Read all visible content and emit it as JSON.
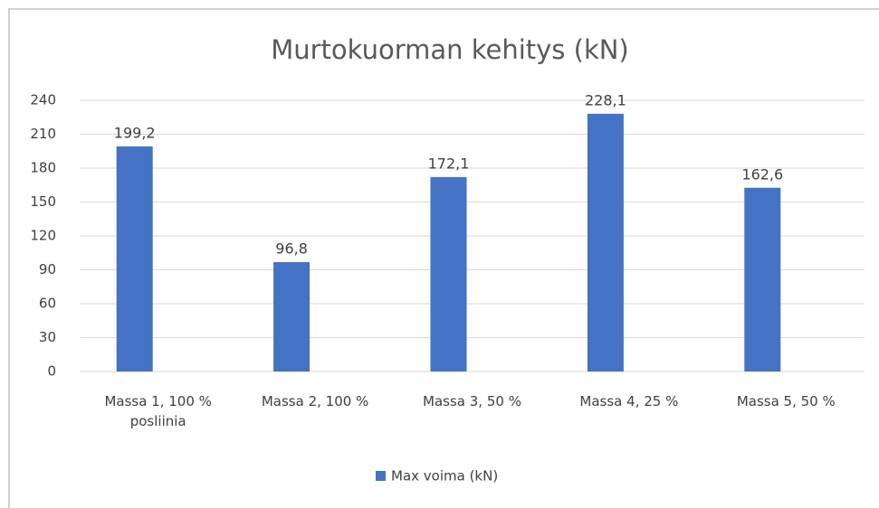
{
  "chart_data": {
    "type": "bar",
    "title": "Murtokuorman kehitys (kN)",
    "categories": [
      "Massa 1, 100 % posliinia",
      "Massa 2, 100 %",
      "Massa 3, 50 %",
      "Massa 4, 25 %",
      "Massa 5, 50 %"
    ],
    "series": [
      {
        "name": "Max voima (kN)",
        "color": "#4472c4",
        "values": [
          199.2,
          96.8,
          172.1,
          228.1,
          162.6
        ],
        "value_labels": [
          "199,2",
          "96,8",
          "172,1",
          "228,1",
          "162,6"
        ]
      }
    ],
    "ylim": [
      0,
      240
    ],
    "yticks": [
      0,
      30,
      60,
      90,
      120,
      150,
      180,
      210,
      240
    ],
    "grid": true,
    "legend": "bottom"
  }
}
